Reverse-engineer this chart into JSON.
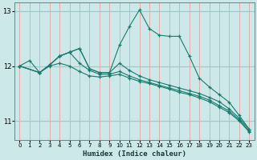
{
  "xlabel": "Humidex (Indice chaleur)",
  "ylabel": "",
  "bg_color": "#cce8e8",
  "grid_color_v": "#e8a0a0",
  "grid_color_h": "#a0c8c8",
  "line_color": "#1a7a6e",
  "xlim": [
    -0.5,
    23.5
  ],
  "ylim": [
    10.65,
    13.15
  ],
  "yticks": [
    11,
    12,
    13
  ],
  "xticks": [
    0,
    1,
    2,
    3,
    4,
    5,
    6,
    7,
    8,
    9,
    10,
    11,
    12,
    13,
    14,
    15,
    16,
    17,
    18,
    19,
    20,
    21,
    22,
    23
  ],
  "lines": [
    {
      "x": [
        0,
        1,
        2,
        3,
        4,
        5,
        6,
        7,
        8,
        9,
        10,
        11,
        12,
        13,
        14,
        15,
        16,
        17,
        18,
        19,
        20,
        21,
        22,
        23
      ],
      "y": [
        12.0,
        12.1,
        11.88,
        12.02,
        12.18,
        12.25,
        12.32,
        11.95,
        11.88,
        11.88,
        12.38,
        12.72,
        13.02,
        12.68,
        12.56,
        12.54,
        12.54,
        12.18,
        11.78,
        11.62,
        11.48,
        11.34,
        11.1,
        10.85
      ]
    },
    {
      "x": [
        0,
        2,
        3,
        4,
        5,
        6,
        7,
        8,
        9,
        10,
        11,
        12,
        13,
        14,
        15,
        16,
        17,
        18,
        19,
        20,
        21,
        22,
        23
      ],
      "y": [
        12.0,
        11.88,
        12.02,
        12.18,
        12.25,
        12.32,
        11.95,
        11.88,
        11.88,
        12.05,
        11.92,
        11.82,
        11.75,
        11.7,
        11.65,
        11.6,
        11.55,
        11.5,
        11.43,
        11.35,
        11.22,
        11.05,
        10.85
      ]
    },
    {
      "x": [
        0,
        2,
        3,
        4,
        5,
        6,
        7,
        8,
        9,
        10,
        11,
        12,
        13,
        14,
        15,
        16,
        17,
        18,
        19,
        20,
        21,
        22,
        23
      ],
      "y": [
        12.0,
        11.88,
        12.02,
        12.18,
        12.25,
        12.05,
        11.92,
        11.85,
        11.85,
        11.9,
        11.82,
        11.75,
        11.7,
        11.65,
        11.6,
        11.55,
        11.5,
        11.45,
        11.38,
        11.28,
        11.18,
        11.02,
        10.82
      ]
    },
    {
      "x": [
        0,
        2,
        3,
        4,
        5,
        6,
        7,
        8,
        9,
        10,
        11,
        12,
        13,
        14,
        15,
        16,
        17,
        18,
        19,
        20,
        21,
        22,
        23
      ],
      "y": [
        12.0,
        11.88,
        12.0,
        12.05,
        12.0,
        11.9,
        11.82,
        11.8,
        11.82,
        11.85,
        11.78,
        11.72,
        11.68,
        11.63,
        11.58,
        11.52,
        11.48,
        11.42,
        11.35,
        11.25,
        11.15,
        11.0,
        10.8
      ]
    }
  ]
}
